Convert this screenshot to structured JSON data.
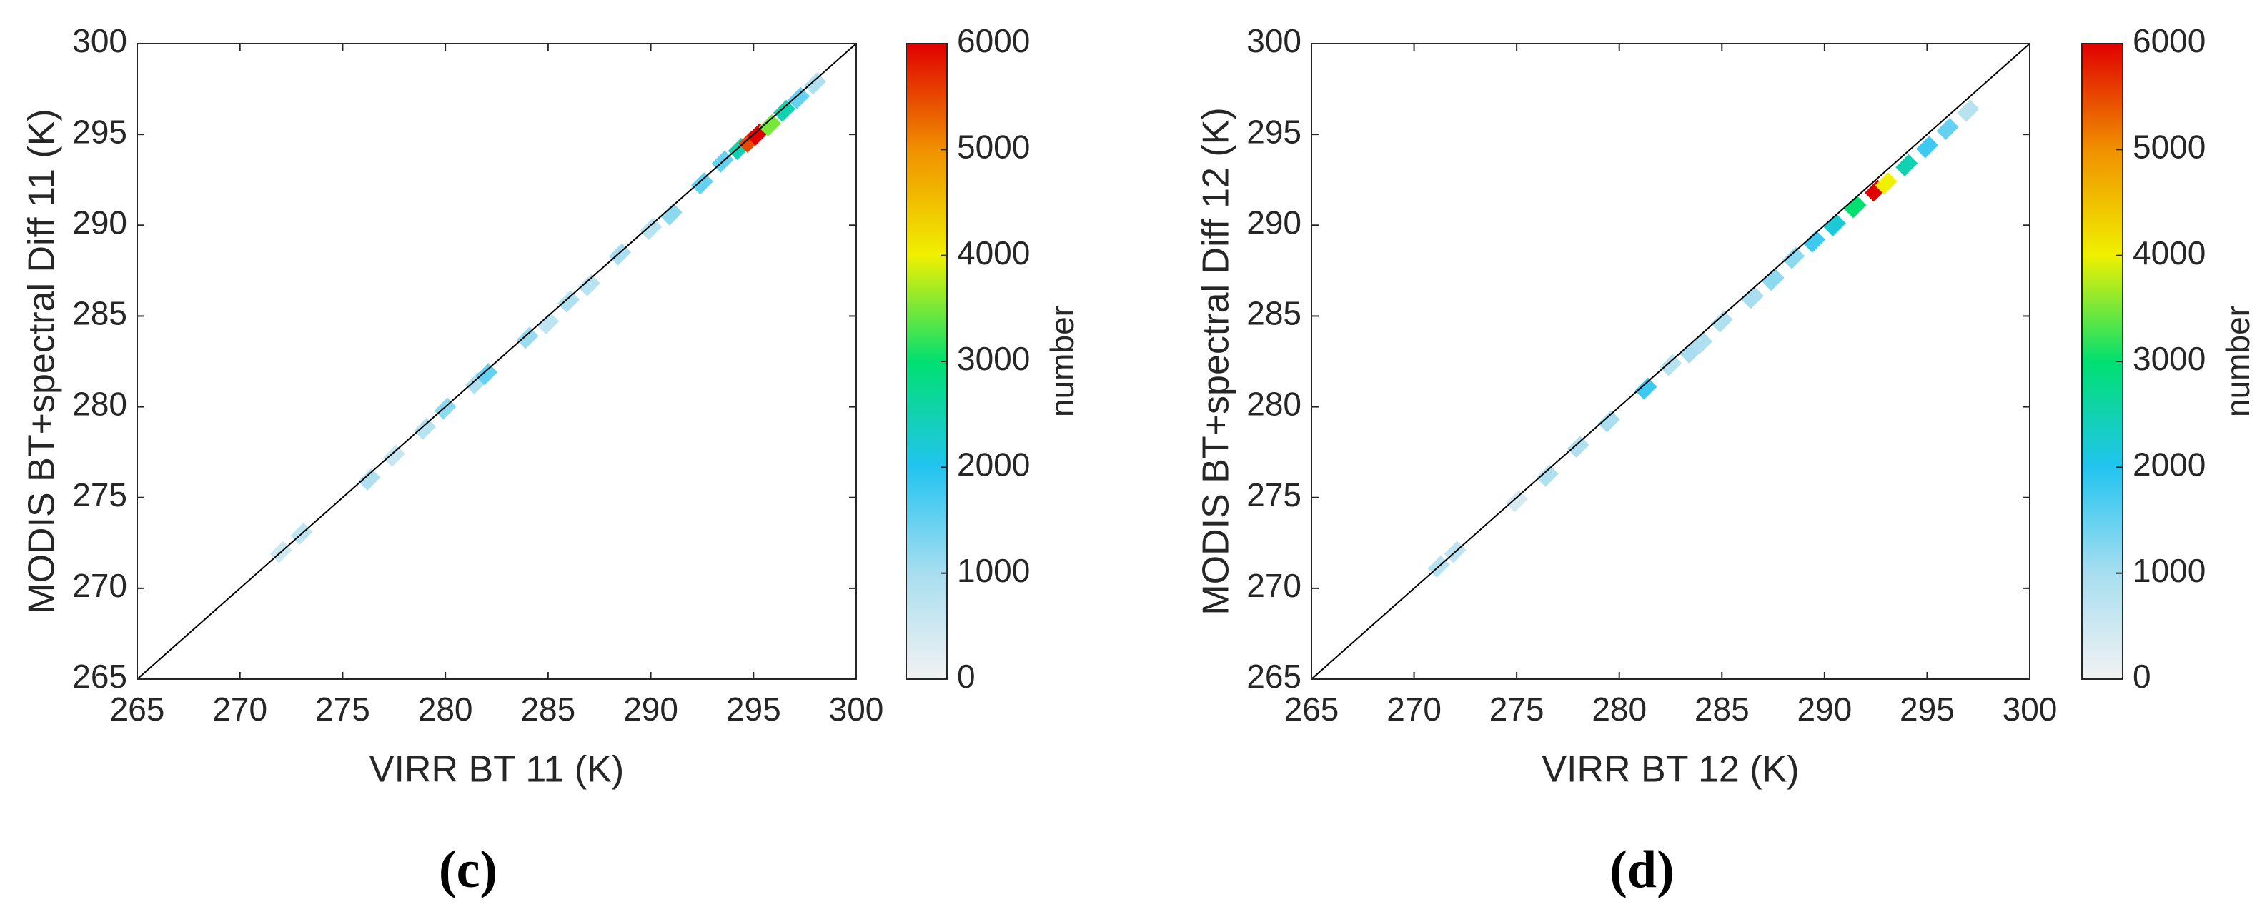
{
  "chart_data": [
    {
      "type": "scatter",
      "panel_label": "(c)",
      "xlabel": "VIRR BT 11 (K)",
      "ylabel": "MODIS BT+spectral Diff 11 (K)",
      "colorbar_label": "number",
      "x": [
        272,
        273,
        276.3,
        277.5,
        279,
        280,
        281.5,
        282,
        284,
        285,
        286,
        287,
        288.5,
        290,
        291,
        292.5,
        293.5,
        294.3,
        294.8,
        295.2,
        295.8,
        296.5,
        297.2,
        298
      ],
      "y": [
        272,
        273,
        276,
        277.3,
        278.8,
        279.9,
        281.3,
        281.8,
        283.8,
        284.6,
        285.8,
        286.7,
        288.4,
        289.8,
        290.6,
        292.3,
        293.5,
        294.2,
        294.6,
        295,
        295.5,
        296.3,
        297,
        297.8
      ],
      "values": [
        500,
        700,
        900,
        600,
        800,
        1200,
        900,
        1500,
        1100,
        700,
        900,
        800,
        1000,
        800,
        1200,
        1500,
        1500,
        2500,
        5500,
        6000,
        3500,
        2500,
        1500,
        900
      ],
      "xlim": [
        265,
        300
      ],
      "ylim": [
        265,
        300
      ],
      "xticks": [
        265,
        270,
        275,
        280,
        285,
        290,
        295,
        300
      ],
      "yticks": [
        265,
        270,
        275,
        280,
        285,
        290,
        295,
        300
      ],
      "clim": [
        0,
        6000
      ],
      "cticks": [
        0,
        1000,
        2000,
        3000,
        4000,
        5000,
        6000
      ],
      "colormap": [
        "#f2f2f2",
        "#a8def0",
        "#22c4f0",
        "#00e070",
        "#f0f000",
        "#f09000",
        "#e00000"
      ]
    },
    {
      "type": "scatter",
      "panel_label": "(d)",
      "xlabel": "VIRR BT 12 (K)",
      "ylabel": "MODIS BT+spectral Diff 12 (K)",
      "colorbar_label": "number",
      "x": [
        271.2,
        272,
        275,
        276.5,
        278,
        279.5,
        281.3,
        282.5,
        283.5,
        284,
        285,
        286.5,
        287.5,
        288.5,
        289.5,
        290.5,
        291.5,
        292.5,
        293,
        294,
        295,
        296,
        297
      ],
      "y": [
        271.2,
        272,
        274.8,
        276.2,
        277.8,
        279.2,
        281,
        282.3,
        283,
        283.5,
        284.7,
        286,
        287,
        288.2,
        289.1,
        290,
        291,
        291.9,
        292.3,
        293.3,
        294.3,
        295.3,
        296.3
      ],
      "values": [
        800,
        700,
        400,
        900,
        900,
        1000,
        1800,
        800,
        1000,
        900,
        900,
        1000,
        1200,
        1200,
        1800,
        2200,
        3000,
        6000,
        4000,
        2500,
        1800,
        1500,
        800
      ],
      "xlim": [
        265,
        300
      ],
      "ylim": [
        265,
        300
      ],
      "xticks": [
        265,
        270,
        275,
        280,
        285,
        290,
        295,
        300
      ],
      "yticks": [
        265,
        270,
        275,
        280,
        285,
        290,
        295,
        300
      ],
      "clim": [
        0,
        6000
      ],
      "cticks": [
        0,
        1000,
        2000,
        3000,
        4000,
        5000,
        6000
      ],
      "colormap": [
        "#f2f2f2",
        "#a8def0",
        "#22c4f0",
        "#00e070",
        "#f0f000",
        "#f09000",
        "#e00000"
      ]
    }
  ]
}
